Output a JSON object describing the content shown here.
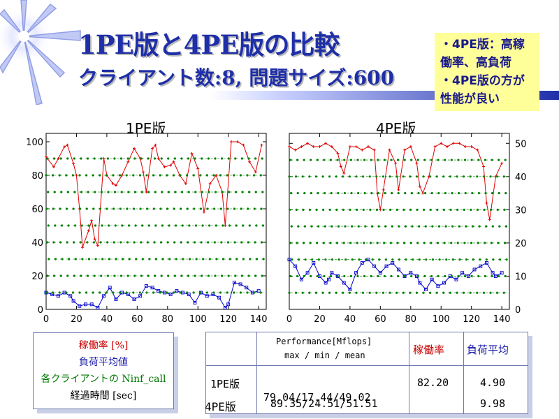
{
  "title": "1PE版と4PE版の比較",
  "subtitle": "クライアント数:8,  問題サイズ:600",
  "callout": {
    "lines": [
      "・4PE版：高稼",
      "働率、高負荷",
      "・4PE版の方が",
      "性能が良い"
    ]
  },
  "legend": {
    "items": [
      {
        "label": "稼働率 [%]",
        "color": "#cc0000"
      },
      {
        "label": "負荷平均値",
        "color": "#1a1aaa"
      },
      {
        "label": "各クライアントの Ninf_call",
        "color": "#007700"
      },
      {
        "label": "経過時間 [sec]",
        "color": "#000000"
      }
    ]
  },
  "table": {
    "header_perf_1": "Performance[Mflops]",
    "header_perf_2": "max / min / mean",
    "header_util": "稼働率",
    "header_load": "負荷平均",
    "rows": [
      {
        "label": "1PE版",
        "perf": "79.04/17.44/49.02",
        "util": "82.20",
        "load": "4.90"
      },
      {
        "label": "4PE版",
        "perf": "89.35/24.51/51.51",
        "util": "",
        "load": "9.98"
      }
    ]
  },
  "colors": {
    "utilization": "#e00000",
    "load": "#0000cc",
    "calls": "#008000",
    "title": "#1f2fa8",
    "callout_bg": "#ffff99"
  },
  "chart_data": [
    {
      "type": "line",
      "title": "1PE版",
      "x_ticks": [
        0,
        20,
        40,
        60,
        80,
        100,
        120,
        140
      ],
      "y_ticks": [
        0,
        20,
        40,
        60,
        80,
        100
      ],
      "xlim": [
        0,
        145
      ],
      "ylim": [
        0,
        105
      ],
      "series": [
        {
          "name": "稼働率 [%]",
          "color": "#e00000",
          "points": [
            [
              0,
              91
            ],
            [
              5,
              85
            ],
            [
              8,
              90
            ],
            [
              12,
              97
            ],
            [
              14,
              98
            ],
            [
              18,
              87
            ],
            [
              20,
              80
            ],
            [
              22,
              60
            ],
            [
              24,
              37
            ],
            [
              28,
              47
            ],
            [
              30,
              53
            ],
            [
              32,
              42
            ],
            [
              34,
              38
            ],
            [
              38,
              90
            ],
            [
              40,
              80
            ],
            [
              44,
              75
            ],
            [
              46,
              74
            ],
            [
              50,
              80
            ],
            [
              54,
              88
            ],
            [
              58,
              96
            ],
            [
              62,
              90
            ],
            [
              64,
              82
            ],
            [
              66,
              70
            ],
            [
              70,
              96
            ],
            [
              72,
              98
            ],
            [
              74,
              90
            ],
            [
              78,
              85
            ],
            [
              82,
              86
            ],
            [
              84,
              88
            ],
            [
              88,
              80
            ],
            [
              92,
              75
            ],
            [
              96,
              93
            ],
            [
              100,
              84
            ],
            [
              104,
              58
            ],
            [
              108,
              75
            ],
            [
              112,
              80
            ],
            [
              116,
              70
            ],
            [
              118,
              50
            ],
            [
              122,
              100
            ],
            [
              126,
              100
            ],
            [
              130,
              98
            ],
            [
              134,
              88
            ],
            [
              138,
              82
            ],
            [
              142,
              98
            ]
          ]
        },
        {
          "name": "負荷平均値",
          "color": "#0000cc",
          "points": [
            [
              0,
              10
            ],
            [
              4,
              9
            ],
            [
              8,
              8
            ],
            [
              12,
              10
            ],
            [
              16,
              8
            ],
            [
              18,
              5
            ],
            [
              22,
              2
            ],
            [
              26,
              3
            ],
            [
              30,
              3
            ],
            [
              34,
              1
            ],
            [
              38,
              8
            ],
            [
              42,
              13
            ],
            [
              46,
              6
            ],
            [
              50,
              10
            ],
            [
              54,
              9
            ],
            [
              58,
              6
            ],
            [
              62,
              8
            ],
            [
              66,
              14
            ],
            [
              70,
              13
            ],
            [
              74,
              11
            ],
            [
              78,
              10
            ],
            [
              82,
              9
            ],
            [
              86,
              11
            ],
            [
              90,
              10
            ],
            [
              94,
              9
            ],
            [
              98,
              4
            ],
            [
              102,
              10
            ],
            [
              106,
              8
            ],
            [
              110,
              9
            ],
            [
              114,
              7
            ],
            [
              118,
              1
            ],
            [
              120,
              3
            ],
            [
              124,
              16
            ],
            [
              128,
              15
            ],
            [
              132,
              13
            ],
            [
              136,
              10
            ],
            [
              140,
              11
            ]
          ]
        },
        {
          "name": "各クライアントの Ninf_call",
          "color": "#008000",
          "levels": [
            10,
            20,
            30,
            40,
            50,
            60,
            70,
            80,
            90
          ]
        }
      ]
    },
    {
      "type": "line",
      "title": "4PE版",
      "x_ticks": [
        0,
        20,
        40,
        60,
        80,
        100,
        120,
        140
      ],
      "y_ticks": [
        0,
        10,
        20,
        30,
        40,
        50
      ],
      "xlim": [
        0,
        145
      ],
      "ylim": [
        0,
        53
      ],
      "series": [
        {
          "name": "稼働率 [%]",
          "color": "#e00000",
          "points": [
            [
              0,
              49
            ],
            [
              4,
              48
            ],
            [
              8,
              49
            ],
            [
              12,
              50
            ],
            [
              16,
              49
            ],
            [
              20,
              49
            ],
            [
              24,
              50
            ],
            [
              28,
              49
            ],
            [
              32,
              47
            ],
            [
              34,
              43
            ],
            [
              36,
              41
            ],
            [
              40,
              49
            ],
            [
              44,
              49
            ],
            [
              48,
              48
            ],
            [
              52,
              49
            ],
            [
              56,
              48
            ],
            [
              58,
              35
            ],
            [
              60,
              30
            ],
            [
              62,
              36
            ],
            [
              66,
              48
            ],
            [
              70,
              44
            ],
            [
              72,
              36
            ],
            [
              76,
              48
            ],
            [
              80,
              49
            ],
            [
              84,
              44
            ],
            [
              86,
              37
            ],
            [
              88,
              35
            ],
            [
              92,
              40
            ],
            [
              96,
              49
            ],
            [
              100,
              50
            ],
            [
              104,
              49
            ],
            [
              108,
              50
            ],
            [
              112,
              50
            ],
            [
              116,
              49
            ],
            [
              120,
              49
            ],
            [
              124,
              48
            ],
            [
              128,
              43
            ],
            [
              130,
              32
            ],
            [
              132,
              27
            ],
            [
              136,
              40
            ],
            [
              140,
              44
            ]
          ]
        },
        {
          "name": "負荷平均値",
          "color": "#0000cc",
          "points": [
            [
              0,
              15
            ],
            [
              4,
              13
            ],
            [
              8,
              9
            ],
            [
              12,
              11
            ],
            [
              16,
              14
            ],
            [
              20,
              10
            ],
            [
              24,
              8
            ],
            [
              26,
              9
            ],
            [
              28,
              11
            ],
            [
              32,
              10
            ],
            [
              36,
              8
            ],
            [
              40,
              6
            ],
            [
              44,
              11
            ],
            [
              48,
              14
            ],
            [
              52,
              15
            ],
            [
              56,
              13
            ],
            [
              60,
              11
            ],
            [
              64,
              13
            ],
            [
              68,
              14
            ],
            [
              72,
              12
            ],
            [
              76,
              10
            ],
            [
              80,
              11
            ],
            [
              84,
              10
            ],
            [
              86,
              8
            ],
            [
              90,
              6
            ],
            [
              94,
              9
            ],
            [
              98,
              7
            ],
            [
              102,
              8
            ],
            [
              106,
              10
            ],
            [
              110,
              9
            ],
            [
              114,
              11
            ],
            [
              118,
              10
            ],
            [
              122,
              12
            ],
            [
              126,
              13
            ],
            [
              130,
              14
            ],
            [
              134,
              11
            ],
            [
              136,
              10
            ],
            [
              140,
              11
            ]
          ]
        },
        {
          "name": "各クライアントの Ninf_call",
          "color": "#008000",
          "levels": [
            5,
            10,
            15,
            20,
            25,
            30,
            35,
            40,
            45
          ]
        }
      ]
    }
  ]
}
